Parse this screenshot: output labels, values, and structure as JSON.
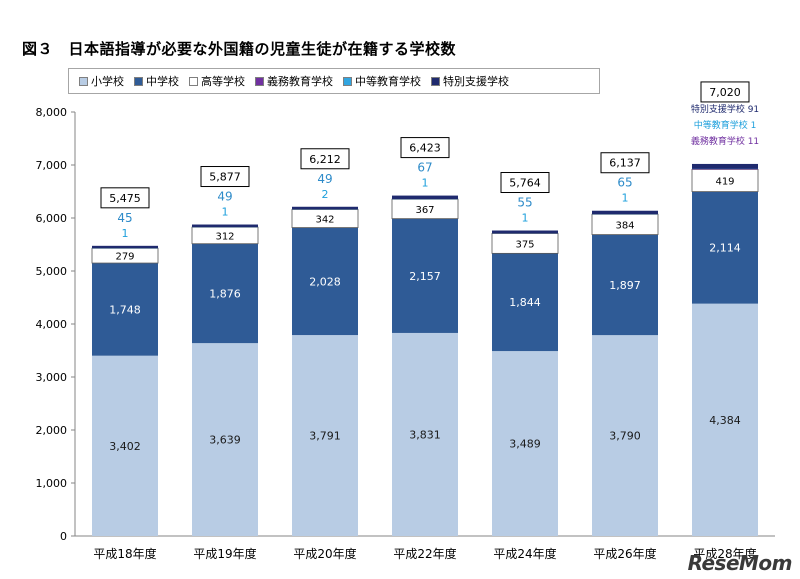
{
  "title": "図３　日本語指導が必要な外国籍の児童生徒が在籍する学校数",
  "watermark": "ReseMom",
  "chart_data": {
    "type": "bar",
    "stacked": true,
    "categories": [
      "平成18年度",
      "平成19年度",
      "平成20年度",
      "平成22年度",
      "平成24年度",
      "平成26年度",
      "平成28年度"
    ],
    "series": [
      {
        "name": "小学校",
        "color": "#b8cce4",
        "values": [
          3402,
          3639,
          3791,
          3831,
          3489,
          3790,
          4384
        ]
      },
      {
        "name": "中学校",
        "color": "#2f5b96",
        "values": [
          1748,
          1876,
          2028,
          2157,
          1844,
          1897,
          2114
        ]
      },
      {
        "name": "高等学校",
        "color": "#ffffff",
        "values": [
          279,
          312,
          342,
          367,
          375,
          384,
          419
        ]
      },
      {
        "name": "義務教育学校",
        "color": "#7030a0",
        "values": [
          0,
          0,
          0,
          0,
          0,
          0,
          11
        ]
      },
      {
        "name": "中等教育学校",
        "color": "#31a5e0",
        "values": [
          1,
          1,
          2,
          1,
          1,
          1,
          1
        ]
      },
      {
        "name": "特別支援学校",
        "color": "#1f2a6e",
        "values": [
          45,
          49,
          49,
          67,
          55,
          65,
          91
        ]
      }
    ],
    "totals": [
      5475,
      5877,
      6212,
      6423,
      5764,
      6137,
      7020
    ],
    "ylim": [
      0,
      8000
    ],
    "yticks": [
      "0",
      "1,000",
      "2,000",
      "3,000",
      "4,000",
      "5,000",
      "6,000",
      "7,000",
      "8,000"
    ],
    "data_labels": {
      "小学校": [
        "3,402",
        "3,639",
        "3,791",
        "3,831",
        "3,489",
        "3,790",
        "4,384"
      ],
      "中学校": [
        "1,748",
        "1,876",
        "2,028",
        "2,157",
        "1,844",
        "1,897",
        "2,114"
      ],
      "高等学校": [
        "279",
        "312",
        "342",
        "367",
        "375",
        "384",
        "419"
      ],
      "中等教育学校": [
        "1",
        "1",
        "2",
        "1",
        "1",
        "1"
      ],
      "特別支援学校": [
        "45",
        "49",
        "49",
        "67",
        "55",
        "65"
      ],
      "totals": [
        "5,475",
        "5,877",
        "6,212",
        "6,423",
        "5,764",
        "6,137",
        "7,020"
      ]
    },
    "last_bar_annotations": [
      "特別支援学校 91",
      "中等教育学校 1",
      "義務教育学校 11"
    ],
    "legend_position": "top",
    "grid": false
  }
}
